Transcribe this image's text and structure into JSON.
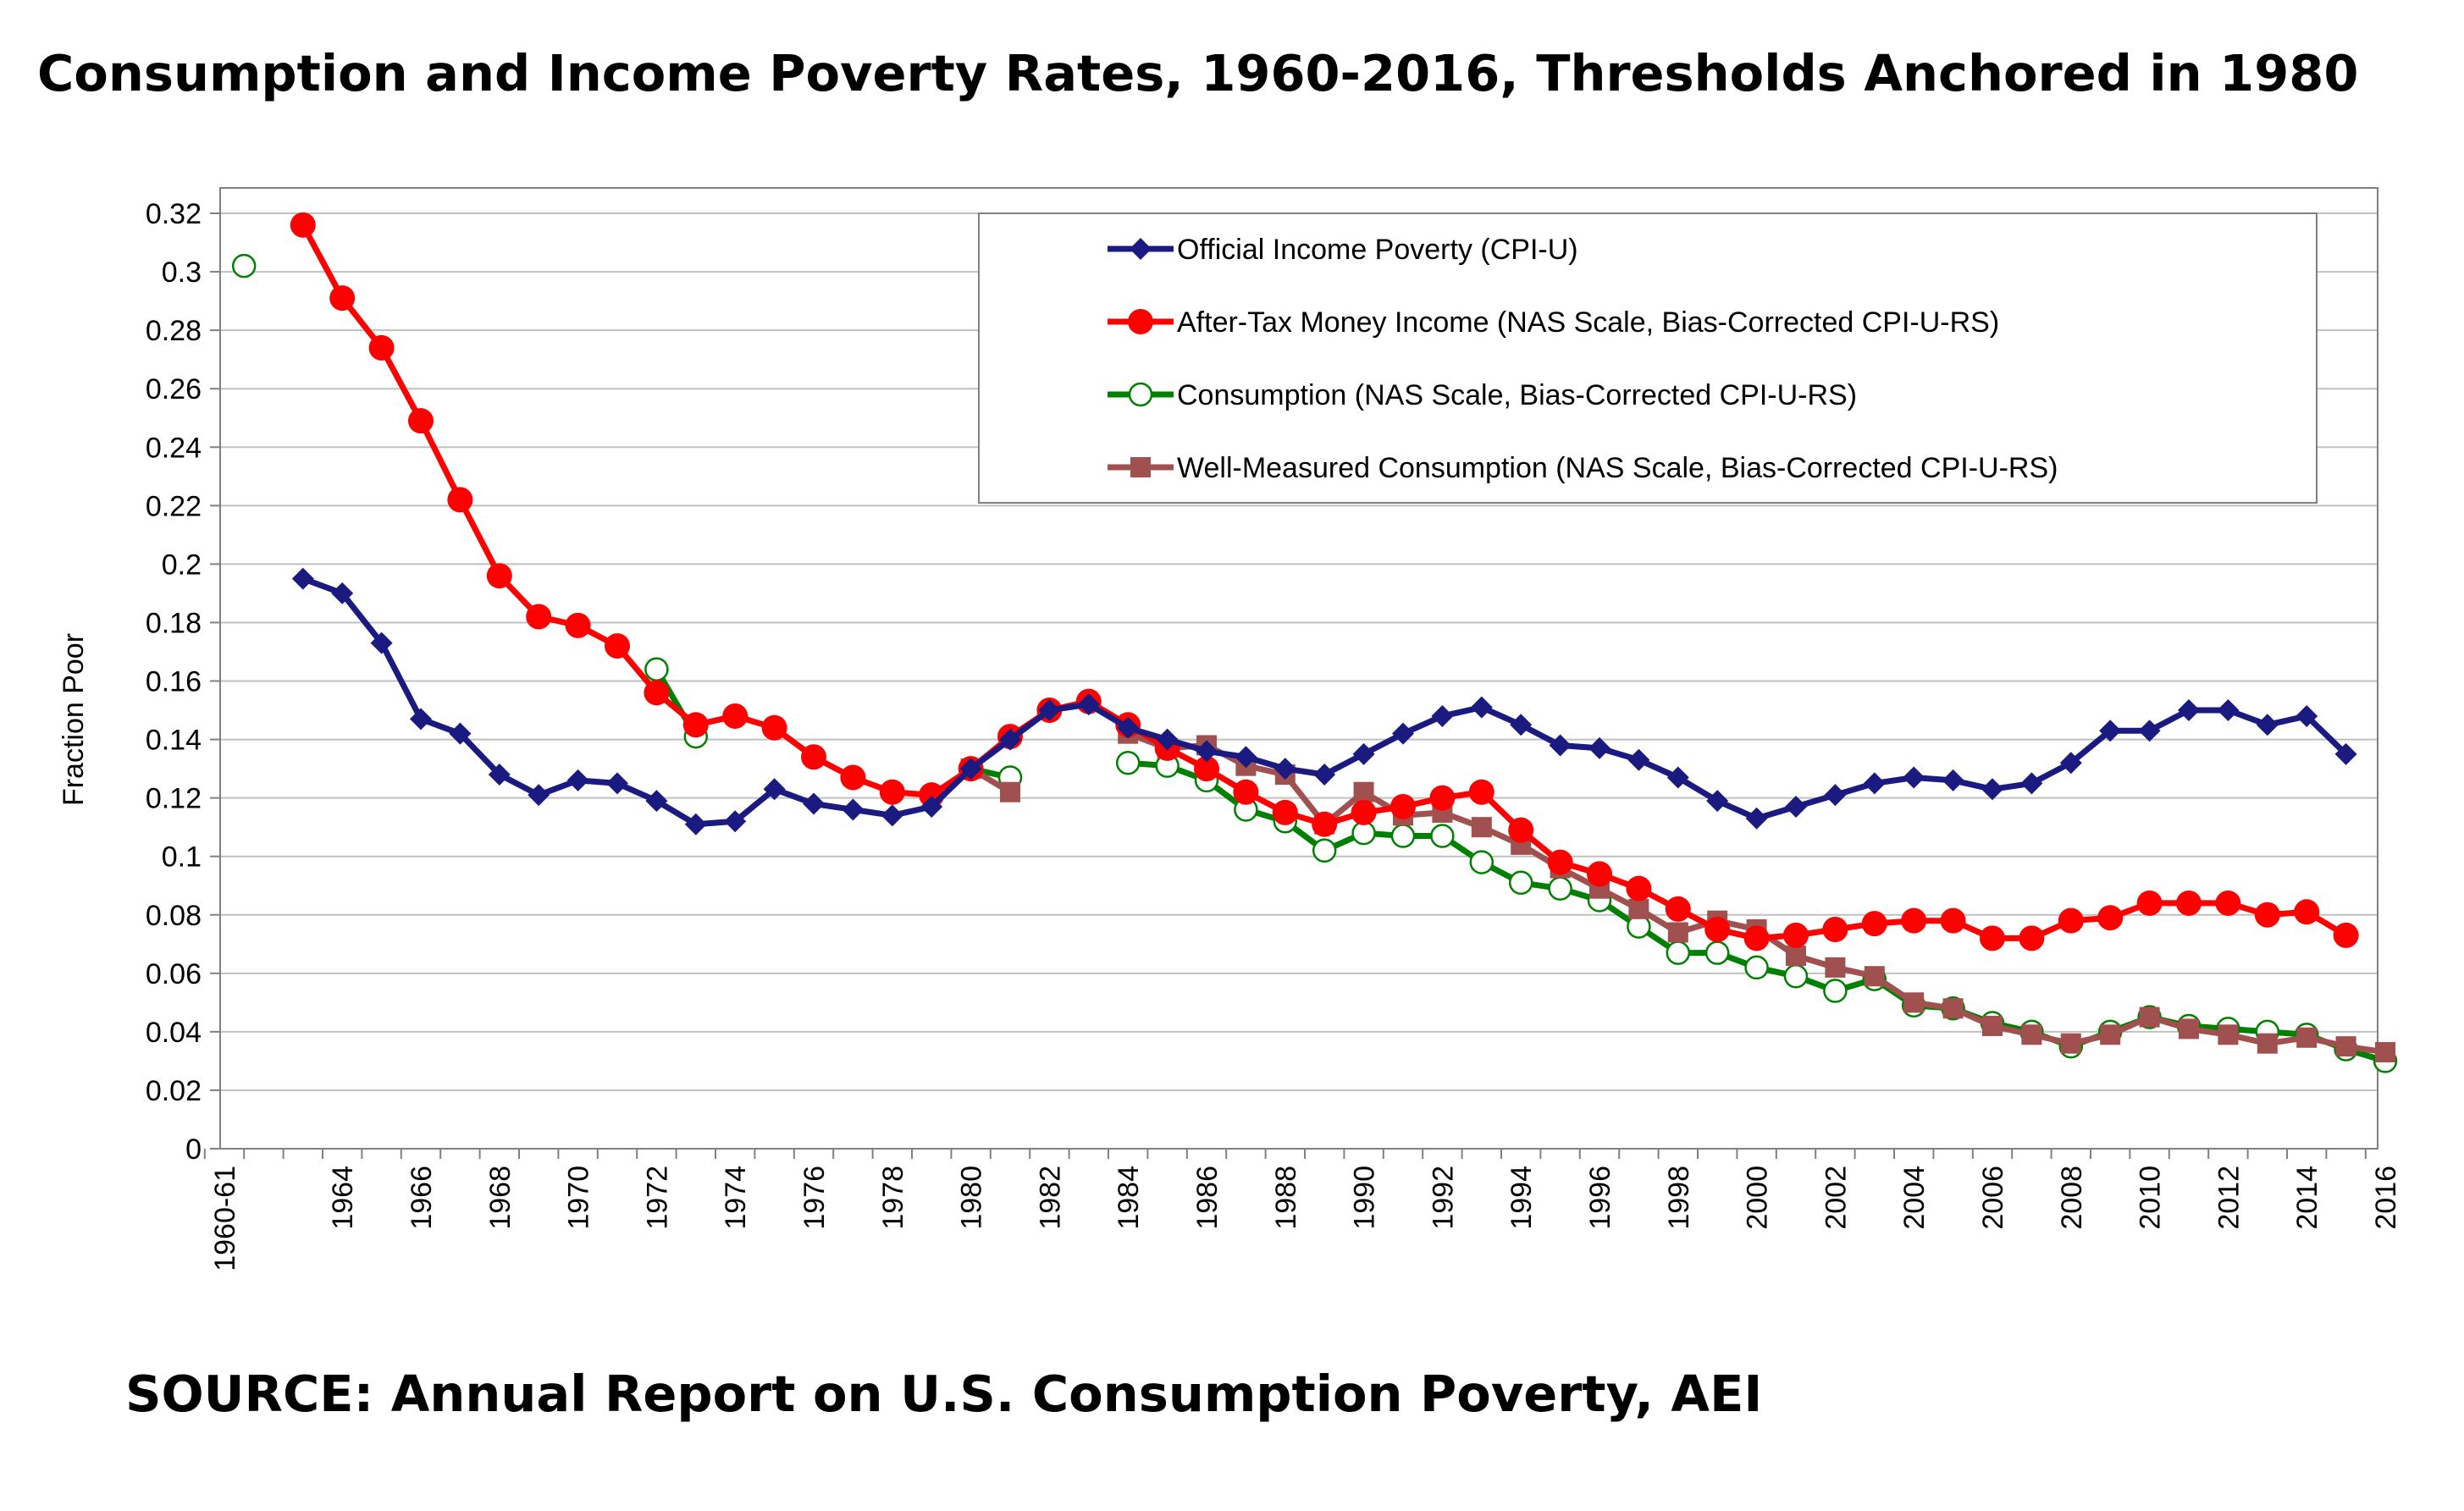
{
  "title": "Consumption and Income Poverty Rates, 1960-2016, Thresholds Anchored in 1980",
  "source": "SOURCE: Annual Report on U.S. Consumption Poverty, AEI",
  "colors": {
    "official": "#1a1a80",
    "after_tax": "#ff0000",
    "consumption": "#008000",
    "well_measured": "#a0504e",
    "grid": "#c0c0c0",
    "axis": "#808080"
  },
  "chart_data": {
    "type": "line",
    "title": "Consumption and Income Poverty Rates, 1960-2016, Thresholds Anchored in 1980",
    "xlabel": "",
    "ylabel": "Fraction Poor",
    "ylim": [
      0,
      0.32
    ],
    "yticks": [
      "0",
      "0.02",
      "0.04",
      "0.06",
      "0.08",
      "0.1",
      "0.12",
      "0.14",
      "0.16",
      "0.18",
      "0.2",
      "0.22",
      "0.24",
      "0.26",
      "0.28",
      "0.3",
      "0.32"
    ],
    "xticks": [
      "1960-61",
      "1964",
      "1966",
      "1968",
      "1970",
      "1972",
      "1974",
      "1976",
      "1978",
      "1980",
      "1982",
      "1984",
      "1986",
      "1988",
      "1990",
      "1992",
      "1994",
      "1996",
      "1998",
      "2000",
      "2002",
      "2004",
      "2006",
      "2008",
      "2010",
      "2012",
      "2014",
      "2016"
    ],
    "legend_position": "top-right",
    "series": [
      {
        "name": "Official Income Poverty (CPI-U)",
        "key": "official",
        "marker": "diamond",
        "segments": [
          [
            [
              1963,
              0.195
            ],
            [
              1964,
              0.19
            ],
            [
              1965,
              0.173
            ],
            [
              1966,
              0.147
            ],
            [
              1967,
              0.142
            ],
            [
              1968,
              0.128
            ],
            [
              1969,
              0.121
            ],
            [
              1970,
              0.126
            ],
            [
              1971,
              0.125
            ],
            [
              1972,
              0.119
            ],
            [
              1973,
              0.111
            ],
            [
              1974,
              0.112
            ],
            [
              1975,
              0.123
            ],
            [
              1976,
              0.118
            ],
            [
              1977,
              0.116
            ],
            [
              1978,
              0.114
            ],
            [
              1979,
              0.117
            ],
            [
              1980,
              0.13
            ],
            [
              1981,
              0.14
            ],
            [
              1982,
              0.15
            ],
            [
              1983,
              0.152
            ],
            [
              1984,
              0.144
            ],
            [
              1985,
              0.14
            ],
            [
              1986,
              0.136
            ],
            [
              1987,
              0.134
            ],
            [
              1988,
              0.13
            ],
            [
              1989,
              0.128
            ],
            [
              1990,
              0.135
            ],
            [
              1991,
              0.142
            ],
            [
              1992,
              0.148
            ],
            [
              1993,
              0.151
            ],
            [
              1994,
              0.145
            ],
            [
              1995,
              0.138
            ],
            [
              1996,
              0.137
            ],
            [
              1997,
              0.133
            ],
            [
              1998,
              0.127
            ],
            [
              1999,
              0.119
            ],
            [
              2000,
              0.113
            ],
            [
              2001,
              0.117
            ],
            [
              2002,
              0.121
            ],
            [
              2003,
              0.125
            ],
            [
              2004,
              0.127
            ],
            [
              2005,
              0.126
            ],
            [
              2006,
              0.123
            ],
            [
              2007,
              0.125
            ],
            [
              2008,
              0.132
            ],
            [
              2009,
              0.143
            ],
            [
              2010,
              0.143
            ],
            [
              2011,
              0.15
            ],
            [
              2012,
              0.15
            ],
            [
              2013,
              0.145
            ],
            [
              2014,
              0.148
            ],
            [
              2015,
              0.135
            ]
          ]
        ]
      },
      {
        "name": "After-Tax Money Income (NAS Scale, Bias-Corrected CPI-U-RS)",
        "key": "after_tax",
        "marker": "circle-filled",
        "segments": [
          [
            [
              1963,
              0.316
            ],
            [
              1964,
              0.291
            ],
            [
              1965,
              0.274
            ],
            [
              1966,
              0.249
            ],
            [
              1967,
              0.222
            ],
            [
              1968,
              0.196
            ],
            [
              1969,
              0.182
            ],
            [
              1970,
              0.179
            ],
            [
              1971,
              0.172
            ],
            [
              1972,
              0.156
            ],
            [
              1973,
              0.145
            ],
            [
              1974,
              0.148
            ],
            [
              1975,
              0.144
            ],
            [
              1976,
              0.134
            ],
            [
              1977,
              0.127
            ],
            [
              1978,
              0.122
            ],
            [
              1979,
              0.121
            ],
            [
              1980,
              0.13
            ],
            [
              1981,
              0.141
            ],
            [
              1982,
              0.15
            ],
            [
              1983,
              0.153
            ],
            [
              1984,
              0.145
            ],
            [
              1985,
              0.137
            ],
            [
              1986,
              0.13
            ],
            [
              1987,
              0.122
            ],
            [
              1988,
              0.115
            ],
            [
              1989,
              0.111
            ],
            [
              1990,
              0.115
            ],
            [
              1991,
              0.117
            ],
            [
              1992,
              0.12
            ],
            [
              1993,
              0.122
            ],
            [
              1994,
              0.109
            ],
            [
              1995,
              0.098
            ],
            [
              1996,
              0.094
            ],
            [
              1997,
              0.089
            ],
            [
              1998,
              0.082
            ],
            [
              1999,
              0.075
            ],
            [
              2000,
              0.072
            ],
            [
              2001,
              0.073
            ],
            [
              2002,
              0.075
            ],
            [
              2003,
              0.077
            ],
            [
              2004,
              0.078
            ],
            [
              2005,
              0.078
            ],
            [
              2006,
              0.072
            ],
            [
              2007,
              0.072
            ],
            [
              2008,
              0.078
            ],
            [
              2009,
              0.079
            ],
            [
              2010,
              0.084
            ],
            [
              2011,
              0.084
            ],
            [
              2012,
              0.084
            ],
            [
              2013,
              0.08
            ],
            [
              2014,
              0.081
            ],
            [
              2015,
              0.073
            ]
          ]
        ]
      },
      {
        "name": "Consumption (NAS Scale, Bias-Corrected CPI-U-RS)",
        "key": "consumption",
        "marker": "circle-open",
        "segments": [
          [
            [
              1961.5,
              0.302
            ]
          ],
          [
            [
              1972,
              0.164
            ],
            [
              1973,
              0.141
            ]
          ],
          [
            [
              1980,
              0.13
            ],
            [
              1981,
              0.127
            ]
          ],
          [
            [
              1984,
              0.132
            ],
            [
              1985,
              0.131
            ],
            [
              1986,
              0.126
            ],
            [
              1987,
              0.116
            ],
            [
              1988,
              0.112
            ],
            [
              1989,
              0.102
            ],
            [
              1990,
              0.108
            ],
            [
              1991,
              0.107
            ],
            [
              1992,
              0.107
            ],
            [
              1993,
              0.098
            ],
            [
              1994,
              0.091
            ],
            [
              1995,
              0.089
            ],
            [
              1996,
              0.085
            ],
            [
              1997,
              0.076
            ],
            [
              1998,
              0.067
            ],
            [
              1999,
              0.067
            ],
            [
              2000,
              0.062
            ],
            [
              2001,
              0.059
            ],
            [
              2002,
              0.054
            ],
            [
              2003,
              0.058
            ],
            [
              2004,
              0.049
            ],
            [
              2005,
              0.048
            ],
            [
              2006,
              0.043
            ],
            [
              2007,
              0.04
            ],
            [
              2008,
              0.035
            ],
            [
              2009,
              0.04
            ],
            [
              2010,
              0.045
            ],
            [
              2011,
              0.042
            ],
            [
              2012,
              0.041
            ],
            [
              2013,
              0.04
            ],
            [
              2014,
              0.039
            ],
            [
              2015,
              0.034
            ],
            [
              2016,
              0.03
            ]
          ]
        ]
      },
      {
        "name": "Well-Measured Consumption (NAS Scale, Bias-Corrected CPI-U-RS)",
        "key": "well_measured",
        "marker": "square",
        "segments": [
          [
            [
              1980,
              0.13
            ],
            [
              1981,
              0.122
            ]
          ],
          [
            [
              1984,
              0.142
            ],
            [
              1985,
              0.137
            ],
            [
              1986,
              0.138
            ],
            [
              1987,
              0.131
            ],
            [
              1988,
              0.128
            ],
            [
              1989,
              0.111
            ],
            [
              1990,
              0.122
            ],
            [
              1991,
              0.114
            ],
            [
              1992,
              0.115
            ],
            [
              1993,
              0.11
            ],
            [
              1994,
              0.104
            ],
            [
              1995,
              0.096
            ],
            [
              1996,
              0.089
            ],
            [
              1997,
              0.082
            ],
            [
              1998,
              0.074
            ],
            [
              1999,
              0.078
            ],
            [
              2000,
              0.075
            ],
            [
              2001,
              0.066
            ],
            [
              2002,
              0.062
            ],
            [
              2003,
              0.059
            ],
            [
              2004,
              0.05
            ],
            [
              2005,
              0.048
            ],
            [
              2006,
              0.042
            ],
            [
              2007,
              0.039
            ],
            [
              2008,
              0.036
            ],
            [
              2009,
              0.039
            ],
            [
              2010,
              0.045
            ],
            [
              2011,
              0.041
            ],
            [
              2012,
              0.039
            ],
            [
              2013,
              0.036
            ],
            [
              2014,
              0.038
            ],
            [
              2015,
              0.035
            ],
            [
              2016,
              0.033
            ]
          ]
        ]
      }
    ]
  }
}
